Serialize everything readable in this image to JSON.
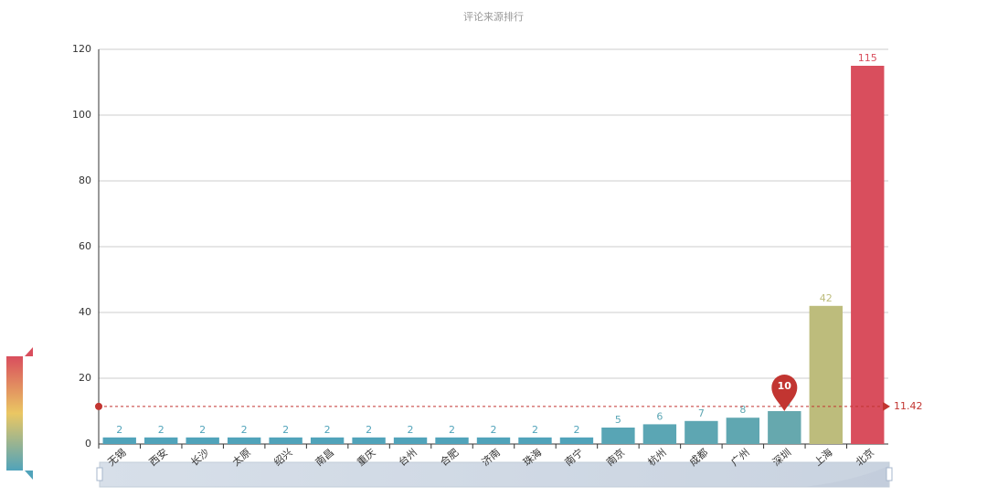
{
  "chart_data": {
    "type": "bar",
    "title": "评论来源排行",
    "categories": [
      "无锡",
      "西安",
      "长沙",
      "太原",
      "绍兴",
      "南昌",
      "重庆",
      "台州",
      "合肥",
      "济南",
      "珠海",
      "南宁",
      "南京",
      "杭州",
      "成都",
      "广州",
      "深圳",
      "上海",
      "北京"
    ],
    "values": [
      2,
      2,
      2,
      2,
      2,
      2,
      2,
      2,
      2,
      2,
      2,
      2,
      5,
      6,
      7,
      8,
      10,
      42,
      115
    ],
    "visual_map_colors": [
      "#50a3ba",
      "#eac763",
      "#d94e5d"
    ],
    "ylim": [
      0,
      120
    ],
    "yticks": [
      0,
      20,
      40,
      60,
      80,
      100,
      120
    ],
    "grid": true,
    "average_line": 11.42
  }
}
